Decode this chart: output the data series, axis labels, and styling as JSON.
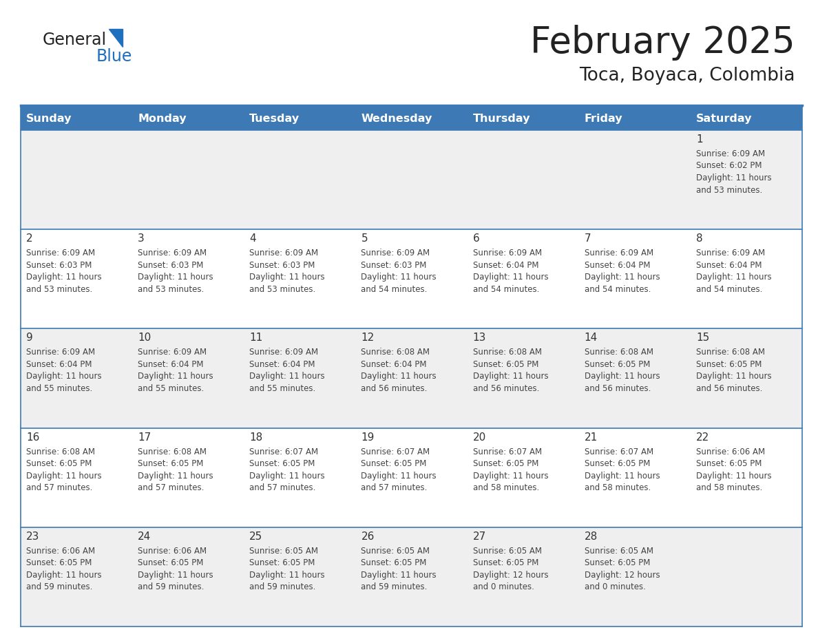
{
  "title": "February 2025",
  "subtitle": "Toca, Boyaca, Colombia",
  "header_bg": "#3d7ab5",
  "header_text": "#ffffff",
  "day_names": [
    "Sunday",
    "Monday",
    "Tuesday",
    "Wednesday",
    "Thursday",
    "Friday",
    "Saturday"
  ],
  "row_bg_even": "#efefef",
  "row_bg_odd": "#ffffff",
  "border_color": "#3d7ab5",
  "text_color": "#444444",
  "num_color": "#333333",
  "logo_general_color": "#222222",
  "logo_blue_color": "#1F6FBF",
  "title_color": "#222222",
  "subtitle_color": "#222222",
  "days": [
    {
      "day": 1,
      "col": 6,
      "row": 0,
      "sunrise": "6:09 AM",
      "sunset": "6:02 PM",
      "daylight": "11 hours and 53 minutes."
    },
    {
      "day": 2,
      "col": 0,
      "row": 1,
      "sunrise": "6:09 AM",
      "sunset": "6:03 PM",
      "daylight": "11 hours and 53 minutes."
    },
    {
      "day": 3,
      "col": 1,
      "row": 1,
      "sunrise": "6:09 AM",
      "sunset": "6:03 PM",
      "daylight": "11 hours and 53 minutes."
    },
    {
      "day": 4,
      "col": 2,
      "row": 1,
      "sunrise": "6:09 AM",
      "sunset": "6:03 PM",
      "daylight": "11 hours and 53 minutes."
    },
    {
      "day": 5,
      "col": 3,
      "row": 1,
      "sunrise": "6:09 AM",
      "sunset": "6:03 PM",
      "daylight": "11 hours and 54 minutes."
    },
    {
      "day": 6,
      "col": 4,
      "row": 1,
      "sunrise": "6:09 AM",
      "sunset": "6:04 PM",
      "daylight": "11 hours and 54 minutes."
    },
    {
      "day": 7,
      "col": 5,
      "row": 1,
      "sunrise": "6:09 AM",
      "sunset": "6:04 PM",
      "daylight": "11 hours and 54 minutes."
    },
    {
      "day": 8,
      "col": 6,
      "row": 1,
      "sunrise": "6:09 AM",
      "sunset": "6:04 PM",
      "daylight": "11 hours and 54 minutes."
    },
    {
      "day": 9,
      "col": 0,
      "row": 2,
      "sunrise": "6:09 AM",
      "sunset": "6:04 PM",
      "daylight": "11 hours and 55 minutes."
    },
    {
      "day": 10,
      "col": 1,
      "row": 2,
      "sunrise": "6:09 AM",
      "sunset": "6:04 PM",
      "daylight": "11 hours and 55 minutes."
    },
    {
      "day": 11,
      "col": 2,
      "row": 2,
      "sunrise": "6:09 AM",
      "sunset": "6:04 PM",
      "daylight": "11 hours and 55 minutes."
    },
    {
      "day": 12,
      "col": 3,
      "row": 2,
      "sunrise": "6:08 AM",
      "sunset": "6:04 PM",
      "daylight": "11 hours and 56 minutes."
    },
    {
      "day": 13,
      "col": 4,
      "row": 2,
      "sunrise": "6:08 AM",
      "sunset": "6:05 PM",
      "daylight": "11 hours and 56 minutes."
    },
    {
      "day": 14,
      "col": 5,
      "row": 2,
      "sunrise": "6:08 AM",
      "sunset": "6:05 PM",
      "daylight": "11 hours and 56 minutes."
    },
    {
      "day": 15,
      "col": 6,
      "row": 2,
      "sunrise": "6:08 AM",
      "sunset": "6:05 PM",
      "daylight": "11 hours and 56 minutes."
    },
    {
      "day": 16,
      "col": 0,
      "row": 3,
      "sunrise": "6:08 AM",
      "sunset": "6:05 PM",
      "daylight": "11 hours and 57 minutes."
    },
    {
      "day": 17,
      "col": 1,
      "row": 3,
      "sunrise": "6:08 AM",
      "sunset": "6:05 PM",
      "daylight": "11 hours and 57 minutes."
    },
    {
      "day": 18,
      "col": 2,
      "row": 3,
      "sunrise": "6:07 AM",
      "sunset": "6:05 PM",
      "daylight": "11 hours and 57 minutes."
    },
    {
      "day": 19,
      "col": 3,
      "row": 3,
      "sunrise": "6:07 AM",
      "sunset": "6:05 PM",
      "daylight": "11 hours and 57 minutes."
    },
    {
      "day": 20,
      "col": 4,
      "row": 3,
      "sunrise": "6:07 AM",
      "sunset": "6:05 PM",
      "daylight": "11 hours and 58 minutes."
    },
    {
      "day": 21,
      "col": 5,
      "row": 3,
      "sunrise": "6:07 AM",
      "sunset": "6:05 PM",
      "daylight": "11 hours and 58 minutes."
    },
    {
      "day": 22,
      "col": 6,
      "row": 3,
      "sunrise": "6:06 AM",
      "sunset": "6:05 PM",
      "daylight": "11 hours and 58 minutes."
    },
    {
      "day": 23,
      "col": 0,
      "row": 4,
      "sunrise": "6:06 AM",
      "sunset": "6:05 PM",
      "daylight": "11 hours and 59 minutes."
    },
    {
      "day": 24,
      "col": 1,
      "row": 4,
      "sunrise": "6:06 AM",
      "sunset": "6:05 PM",
      "daylight": "11 hours and 59 minutes."
    },
    {
      "day": 25,
      "col": 2,
      "row": 4,
      "sunrise": "6:05 AM",
      "sunset": "6:05 PM",
      "daylight": "11 hours and 59 minutes."
    },
    {
      "day": 26,
      "col": 3,
      "row": 4,
      "sunrise": "6:05 AM",
      "sunset": "6:05 PM",
      "daylight": "11 hours and 59 minutes."
    },
    {
      "day": 27,
      "col": 4,
      "row": 4,
      "sunrise": "6:05 AM",
      "sunset": "6:05 PM",
      "daylight": "12 hours and 0 minutes."
    },
    {
      "day": 28,
      "col": 5,
      "row": 4,
      "sunrise": "6:05 AM",
      "sunset": "6:05 PM",
      "daylight": "12 hours and 0 minutes."
    }
  ],
  "num_rows": 5
}
